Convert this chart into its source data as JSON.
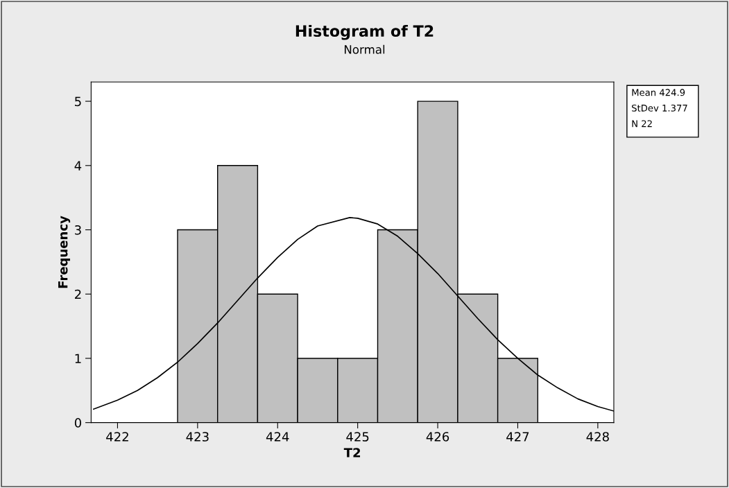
{
  "chart_data": {
    "type": "histogram",
    "title": "Histogram of T2",
    "subtitle": "Normal",
    "xlabel": "T2",
    "ylabel": "Frequency",
    "bins": [
      422.75,
      423.25,
      423.75,
      424.25,
      424.75,
      425.25,
      425.75,
      426.25,
      426.75,
      427.25
    ],
    "values": [
      3,
      4,
      2,
      1,
      1,
      3,
      5,
      2,
      1
    ],
    "color": "#c0c0c0",
    "series": [
      {
        "type": "line",
        "color": "#000000",
        "x": [
          421.7,
          422,
          422.25,
          422.5,
          422.75,
          423,
          423.25,
          423.5,
          423.75,
          424,
          424.25,
          424.5,
          424.9,
          425,
          425.25,
          425.5,
          425.75,
          426,
          426.25,
          426.5,
          426.75,
          427,
          427.25,
          427.5,
          427.75,
          428,
          428.2
        ],
        "values": [
          0.21,
          0.35,
          0.5,
          0.7,
          0.94,
          1.23,
          1.55,
          1.9,
          2.25,
          2.57,
          2.85,
          3.06,
          3.19,
          3.18,
          3.09,
          2.9,
          2.63,
          2.32,
          1.97,
          1.62,
          1.29,
          1.0,
          0.74,
          0.54,
          0.37,
          0.25,
          0.18
        ]
      }
    ],
    "xlim": [
      421.67,
      428.2
    ],
    "xticks": [
      422,
      423,
      424,
      425,
      426,
      427,
      428
    ],
    "ylim": [
      0,
      5.3
    ],
    "yticks": [
      0,
      1,
      2,
      3,
      4,
      5
    ],
    "grid": false,
    "legend": false,
    "annotations": [
      "Mean 424.9",
      "StDev 1.377",
      "N 22"
    ]
  }
}
